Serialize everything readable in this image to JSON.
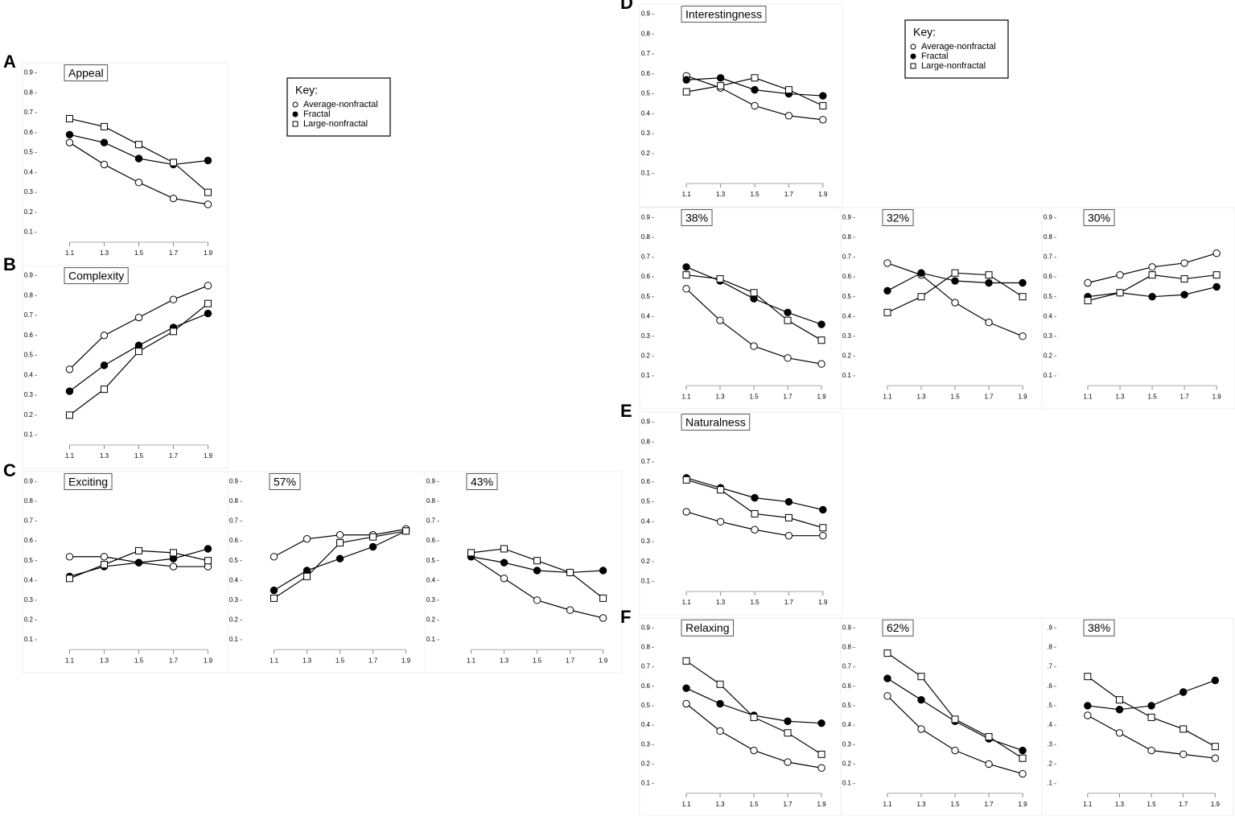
{
  "chart_data": [
    {
      "type": "line",
      "panel": "A",
      "title": "Appeal",
      "legend_title": "Key:",
      "x": [
        1.1,
        1.3,
        1.5,
        1.7,
        1.9
      ],
      "xlim": [
        1.0,
        2.0
      ],
      "xticks": [
        1.1,
        1.3,
        1.5,
        1.7,
        1.9
      ],
      "ylim": [
        0.05,
        0.92
      ],
      "yticks": [
        0.1,
        0.2,
        0.3,
        0.4,
        0.5,
        0.6,
        0.7,
        0.8,
        0.9
      ],
      "grid": false,
      "series": [
        {
          "name": "Average-nonfractal",
          "color": "#000000",
          "marker": "open-circle",
          "values": [
            0.55,
            0.44,
            0.35,
            0.27,
            0.24
          ]
        },
        {
          "name": "Fractal",
          "color": "#000000",
          "marker": "filled-circle",
          "values": [
            0.59,
            0.55,
            0.47,
            0.44,
            0.46
          ]
        },
        {
          "name": "Large-nonfractal",
          "color": "#000000",
          "marker": "open-square",
          "values": [
            0.67,
            0.63,
            0.54,
            0.45,
            0.3
          ]
        }
      ]
    },
    {
      "type": "line",
      "panel": "B",
      "title": "Complexity",
      "x": [
        1.1,
        1.3,
        1.5,
        1.7,
        1.9
      ],
      "xlim": [
        1.0,
        2.0
      ],
      "xticks": [
        1.1,
        1.3,
        1.5,
        1.7,
        1.9
      ],
      "ylim": [
        0.05,
        0.92
      ],
      "yticks": [
        0.1,
        0.2,
        0.3,
        0.4,
        0.5,
        0.6,
        0.7,
        0.8,
        0.9
      ],
      "grid": false,
      "series": [
        {
          "name": "Average-nonfractal",
          "color": "#000000",
          "marker": "open-circle",
          "values": [
            0.43,
            0.6,
            0.69,
            0.78,
            0.85
          ]
        },
        {
          "name": "Fractal",
          "color": "#000000",
          "marker": "filled-circle",
          "values": [
            0.32,
            0.45,
            0.55,
            0.64,
            0.71
          ]
        },
        {
          "name": "Large-nonfractal",
          "color": "#000000",
          "marker": "open-square",
          "values": [
            0.2,
            0.33,
            0.52,
            0.62,
            0.76
          ]
        }
      ]
    },
    {
      "type": "line",
      "panel": "C",
      "title": "Exciting",
      "x": [
        1.1,
        1.3,
        1.5,
        1.7,
        1.9
      ],
      "xlim": [
        1.0,
        2.0
      ],
      "xticks": [
        1.1,
        1.3,
        1.5,
        1.7,
        1.9
      ],
      "ylim": [
        0.05,
        0.92
      ],
      "yticks": [
        0.1,
        0.2,
        0.3,
        0.4,
        0.5,
        0.6,
        0.7,
        0.8,
        0.9
      ],
      "grid": false,
      "series": [
        {
          "name": "Average-nonfractal",
          "color": "#000000",
          "marker": "open-circle",
          "values": [
            0.52,
            0.52,
            0.49,
            0.47,
            0.47
          ]
        },
        {
          "name": "Fractal",
          "color": "#000000",
          "marker": "filled-circle",
          "values": [
            0.42,
            0.47,
            0.49,
            0.51,
            0.56
          ]
        },
        {
          "name": "Large-nonfractal",
          "color": "#000000",
          "marker": "open-square",
          "values": [
            0.41,
            0.48,
            0.55,
            0.54,
            0.5
          ]
        }
      ]
    },
    {
      "type": "line",
      "title": "57%",
      "x": [
        1.1,
        1.3,
        1.5,
        1.7,
        1.9
      ],
      "xlim": [
        1.0,
        2.0
      ],
      "xticks": [
        1.1,
        1.3,
        1.5,
        1.7,
        1.9
      ],
      "ylim": [
        0.05,
        0.92
      ],
      "yticks": [
        0.1,
        0.2,
        0.3,
        0.4,
        0.5,
        0.6,
        0.7,
        0.8,
        0.9
      ],
      "grid": false,
      "series": [
        {
          "name": "Average-nonfractal",
          "color": "#000000",
          "marker": "open-circle",
          "values": [
            0.52,
            0.61,
            0.63,
            0.63,
            0.66
          ]
        },
        {
          "name": "Fractal",
          "color": "#000000",
          "marker": "filled-circle",
          "values": [
            0.35,
            0.45,
            0.51,
            0.57,
            0.65
          ]
        },
        {
          "name": "Large-nonfractal",
          "color": "#000000",
          "marker": "open-square",
          "values": [
            0.31,
            0.42,
            0.59,
            0.62,
            0.65
          ]
        }
      ]
    },
    {
      "type": "line",
      "title": "43%",
      "x": [
        1.1,
        1.3,
        1.5,
        1.7,
        1.9
      ],
      "xlim": [
        1.0,
        2.0
      ],
      "xticks": [
        1.1,
        1.3,
        1.5,
        1.7,
        1.9
      ],
      "ylim": [
        0.05,
        0.92
      ],
      "yticks": [
        0.1,
        0.2,
        0.3,
        0.4,
        0.5,
        0.6,
        0.7,
        0.8,
        0.9
      ],
      "grid": false,
      "series": [
        {
          "name": "Average-nonfractal",
          "color": "#000000",
          "marker": "open-circle",
          "values": [
            0.52,
            0.41,
            0.3,
            0.25,
            0.21
          ]
        },
        {
          "name": "Fractal",
          "color": "#000000",
          "marker": "filled-circle",
          "values": [
            0.52,
            0.49,
            0.45,
            0.44,
            0.45
          ]
        },
        {
          "name": "Large-nonfractal",
          "color": "#000000",
          "marker": "open-square",
          "values": [
            0.54,
            0.56,
            0.5,
            0.44,
            0.31
          ]
        }
      ]
    },
    {
      "type": "line",
      "panel": "D",
      "title": "Interestingness",
      "legend_title": "Key:",
      "x": [
        1.1,
        1.3,
        1.5,
        1.7,
        1.9
      ],
      "xlim": [
        1.0,
        2.0
      ],
      "xticks": [
        1.1,
        1.3,
        1.5,
        1.7,
        1.9
      ],
      "ylim": [
        0.05,
        0.92
      ],
      "yticks": [
        0.1,
        0.2,
        0.3,
        0.4,
        0.5,
        0.6,
        0.7,
        0.8,
        0.9
      ],
      "grid": false,
      "series": [
        {
          "name": "Average-nonfractal",
          "color": "#000000",
          "marker": "open-circle",
          "values": [
            0.59,
            0.53,
            0.44,
            0.39,
            0.37
          ]
        },
        {
          "name": "Fractal",
          "color": "#000000",
          "marker": "filled-circle",
          "values": [
            0.57,
            0.58,
            0.52,
            0.5,
            0.49
          ]
        },
        {
          "name": "Large-nonfractal",
          "color": "#000000",
          "marker": "open-square",
          "values": [
            0.51,
            0.54,
            0.58,
            0.52,
            0.44
          ]
        }
      ]
    },
    {
      "type": "line",
      "title": "38%",
      "x": [
        1.1,
        1.3,
        1.5,
        1.7,
        1.9
      ],
      "xlim": [
        1.0,
        2.0
      ],
      "xticks": [
        1.1,
        1.3,
        1.5,
        1.7,
        1.9
      ],
      "ylim": [
        0.05,
        0.92
      ],
      "yticks": [
        0.1,
        0.2,
        0.3,
        0.4,
        0.5,
        0.6,
        0.7,
        0.8,
        0.9
      ],
      "grid": false,
      "series": [
        {
          "name": "Average-nonfractal",
          "color": "#000000",
          "marker": "open-circle",
          "values": [
            0.54,
            0.38,
            0.25,
            0.19,
            0.16
          ]
        },
        {
          "name": "Fractal",
          "color": "#000000",
          "marker": "filled-circle",
          "values": [
            0.65,
            0.58,
            0.49,
            0.42,
            0.36
          ]
        },
        {
          "name": "Large-nonfractal",
          "color": "#000000",
          "marker": "open-square",
          "values": [
            0.61,
            0.59,
            0.52,
            0.38,
            0.28
          ]
        }
      ]
    },
    {
      "type": "line",
      "title": "32%",
      "x": [
        1.1,
        1.3,
        1.5,
        1.7,
        1.9
      ],
      "xlim": [
        1.0,
        2.0
      ],
      "xticks": [
        1.1,
        1.3,
        1.5,
        1.7,
        1.9
      ],
      "ylim": [
        0.05,
        0.92
      ],
      "yticks": [
        0.1,
        0.2,
        0.3,
        0.4,
        0.5,
        0.6,
        0.7,
        0.8,
        0.9
      ],
      "grid": false,
      "series": [
        {
          "name": "Average-nonfractal",
          "color": "#000000",
          "marker": "open-circle",
          "values": [
            0.67,
            0.61,
            0.47,
            0.37,
            0.3
          ]
        },
        {
          "name": "Fractal",
          "color": "#000000",
          "marker": "filled-circle",
          "values": [
            0.53,
            0.62,
            0.58,
            0.57,
            0.57
          ]
        },
        {
          "name": "Large-nonfractal",
          "color": "#000000",
          "marker": "open-square",
          "values": [
            0.42,
            0.5,
            0.62,
            0.61,
            0.5
          ]
        }
      ]
    },
    {
      "type": "line",
      "title": "30%",
      "x": [
        1.1,
        1.3,
        1.5,
        1.7,
        1.9
      ],
      "xlim": [
        1.0,
        2.0
      ],
      "xticks": [
        1.1,
        1.3,
        1.5,
        1.7,
        1.9
      ],
      "ylim": [
        0.05,
        0.92
      ],
      "yticks": [
        0.1,
        0.2,
        0.3,
        0.4,
        0.5,
        0.6,
        0.7,
        0.8,
        0.9
      ],
      "grid": false,
      "series": [
        {
          "name": "Average-nonfractal",
          "color": "#000000",
          "marker": "open-circle",
          "values": [
            0.57,
            0.61,
            0.65,
            0.67,
            0.72
          ]
        },
        {
          "name": "Fractal",
          "color": "#000000",
          "marker": "filled-circle",
          "values": [
            0.5,
            0.52,
            0.5,
            0.51,
            0.55
          ]
        },
        {
          "name": "Large-nonfractal",
          "color": "#000000",
          "marker": "open-square",
          "values": [
            0.48,
            0.52,
            0.61,
            0.59,
            0.61
          ]
        }
      ]
    },
    {
      "type": "line",
      "panel": "E",
      "title": "Naturalness",
      "x": [
        1.1,
        1.3,
        1.5,
        1.7,
        1.9
      ],
      "xlim": [
        1.0,
        2.0
      ],
      "xticks": [
        1.1,
        1.3,
        1.5,
        1.7,
        1.9
      ],
      "ylim": [
        0.05,
        0.92
      ],
      "yticks": [
        0.1,
        0.2,
        0.3,
        0.4,
        0.5,
        0.6,
        0.7,
        0.8,
        0.9
      ],
      "grid": false,
      "series": [
        {
          "name": "Average-nonfractal",
          "color": "#000000",
          "marker": "open-circle",
          "values": [
            0.45,
            0.4,
            0.36,
            0.33,
            0.33
          ]
        },
        {
          "name": "Fractal",
          "color": "#000000",
          "marker": "filled-circle",
          "values": [
            0.62,
            0.57,
            0.52,
            0.5,
            0.46
          ]
        },
        {
          "name": "Large-nonfractal",
          "color": "#000000",
          "marker": "open-square",
          "values": [
            0.61,
            0.56,
            0.44,
            0.42,
            0.37
          ]
        }
      ]
    },
    {
      "type": "line",
      "panel": "F",
      "title": "Relaxing",
      "x": [
        1.1,
        1.3,
        1.5,
        1.7,
        1.9
      ],
      "xlim": [
        1.0,
        2.0
      ],
      "xticks": [
        1.1,
        1.3,
        1.5,
        1.7,
        1.9
      ],
      "ylim": [
        0.05,
        0.92
      ],
      "yticks": [
        0.1,
        0.2,
        0.3,
        0.4,
        0.5,
        0.6,
        0.7,
        0.8,
        0.9
      ],
      "grid": false,
      "series": [
        {
          "name": "Average-nonfractal",
          "color": "#000000",
          "marker": "open-circle",
          "values": [
            0.51,
            0.37,
            0.27,
            0.21,
            0.18
          ]
        },
        {
          "name": "Fractal",
          "color": "#000000",
          "marker": "filled-circle",
          "values": [
            0.59,
            0.51,
            0.45,
            0.42,
            0.41
          ]
        },
        {
          "name": "Large-nonfractal",
          "color": "#000000",
          "marker": "open-square",
          "values": [
            0.73,
            0.61,
            0.44,
            0.36,
            0.25
          ]
        }
      ]
    },
    {
      "type": "line",
      "title": "62%",
      "x": [
        1.1,
        1.3,
        1.5,
        1.7,
        1.9
      ],
      "xlim": [
        1.0,
        2.0
      ],
      "xticks": [
        1.1,
        1.3,
        1.5,
        1.7,
        1.9
      ],
      "ylim": [
        0.05,
        0.92
      ],
      "yticks": [
        0.1,
        0.2,
        0.3,
        0.4,
        0.5,
        0.6,
        0.7,
        0.8,
        0.9
      ],
      "grid": false,
      "series": [
        {
          "name": "Average-nonfractal",
          "color": "#000000",
          "marker": "open-circle",
          "values": [
            0.55,
            0.38,
            0.27,
            0.2,
            0.15
          ]
        },
        {
          "name": "Fractal",
          "color": "#000000",
          "marker": "filled-circle",
          "values": [
            0.64,
            0.53,
            0.42,
            0.33,
            0.27
          ]
        },
        {
          "name": "Large-nonfractal",
          "color": "#000000",
          "marker": "open-square",
          "values": [
            0.77,
            0.65,
            0.43,
            0.34,
            0.23
          ]
        }
      ]
    },
    {
      "type": "line",
      "title": "38%",
      "x": [
        1.1,
        1.3,
        1.5,
        1.7,
        1.9
      ],
      "xlim": [
        1.0,
        2.0
      ],
      "xticks": [
        1.1,
        1.3,
        1.5,
        1.7,
        1.9
      ],
      "ylim": [
        0.05,
        0.92
      ],
      "yticks": [
        {
          "value": 0.1,
          "label": ".1"
        },
        {
          "value": 0.2,
          "label": ".2"
        },
        {
          "value": 0.3,
          "label": ".3"
        },
        {
          "value": 0.4,
          "label": ".4"
        },
        {
          "value": 0.5,
          "label": ".5"
        },
        {
          "value": 0.6,
          "label": ".6"
        },
        {
          "value": 0.7,
          "label": ".7"
        },
        {
          "value": 0.8,
          "label": ".8"
        },
        {
          "value": 0.9,
          "label": ".9"
        }
      ],
      "grid": false,
      "series": [
        {
          "name": "Average-nonfractal",
          "color": "#000000",
          "marker": "open-circle",
          "values": [
            0.45,
            0.36,
            0.27,
            0.25,
            0.23
          ]
        },
        {
          "name": "Fractal",
          "color": "#000000",
          "marker": "filled-circle",
          "values": [
            0.5,
            0.48,
            0.5,
            0.57,
            0.63
          ]
        },
        {
          "name": "Large-nonfractal",
          "color": "#000000",
          "marker": "open-square",
          "values": [
            0.65,
            0.53,
            0.44,
            0.38,
            0.29
          ]
        }
      ]
    }
  ]
}
